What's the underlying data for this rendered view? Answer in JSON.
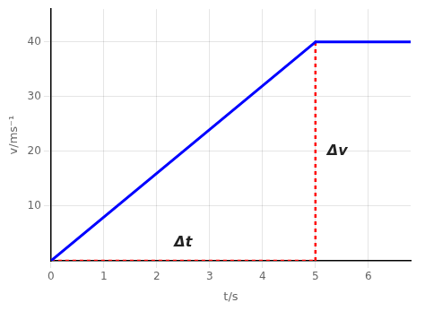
{
  "chart_data": {
    "type": "line",
    "xlabel": "t/s",
    "ylabel": "v/ms⁻¹",
    "xlim": [
      0,
      6.8
    ],
    "ylim": [
      0,
      46
    ],
    "xticks": [
      0,
      1,
      2,
      3,
      4,
      5,
      6
    ],
    "yticks": [
      10,
      20,
      30,
      40
    ],
    "grid": true,
    "series": [
      {
        "x": [
          0,
          5
        ],
        "values": [
          0,
          40
        ],
        "color": "blue",
        "line_style": "solid"
      },
      {
        "x": [
          5,
          6.8
        ],
        "values": [
          40,
          40
        ],
        "color": "blue",
        "line_style": "solid"
      },
      {
        "x": [
          0,
          5
        ],
        "values": [
          0,
          0
        ],
        "color": "red",
        "line_style": "dotted"
      },
      {
        "x": [
          5,
          5
        ],
        "values": [
          0,
          40
        ],
        "color": "red",
        "line_style": "dotted"
      }
    ],
    "annotations": [
      {
        "text": "Δt",
        "x": 2.5,
        "y": 2.0
      },
      {
        "text": "Δv",
        "x": 5.22,
        "y": 20
      }
    ]
  }
}
